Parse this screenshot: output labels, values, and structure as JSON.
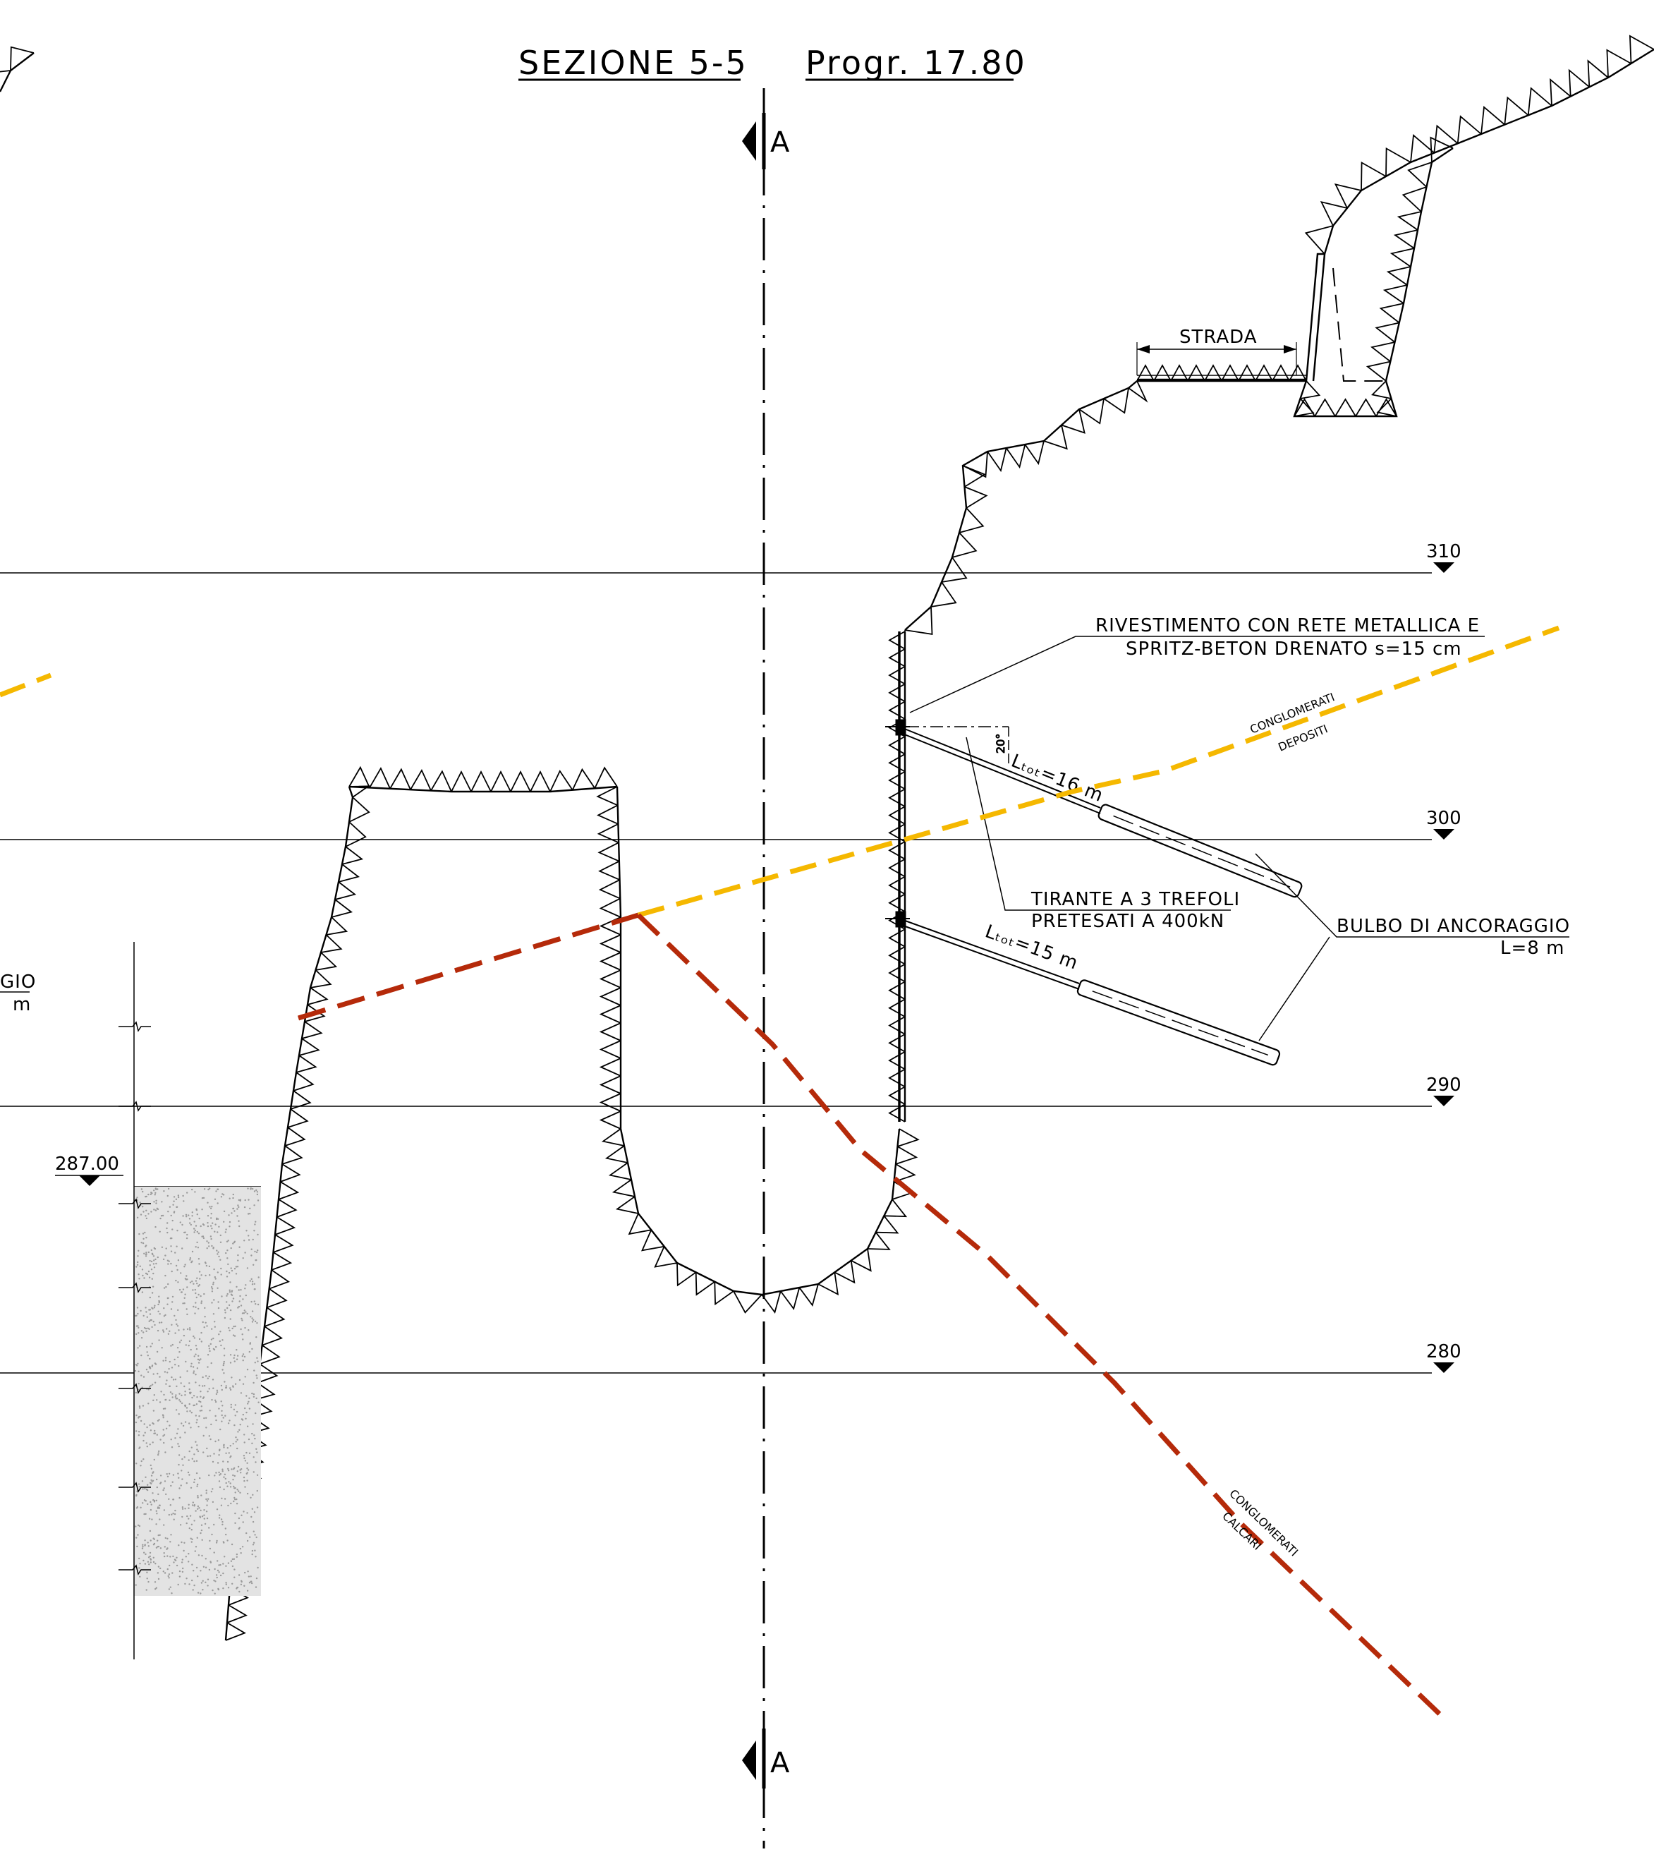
{
  "title": {
    "section": "SEZIONE 5-5",
    "progr": "Progr. 17.80"
  },
  "section_marker": "A",
  "elevations": [
    {
      "name": "310",
      "value": 310
    },
    {
      "name": "300",
      "value": 300
    },
    {
      "name": "290",
      "value": 290
    },
    {
      "name": "280",
      "value": 280
    }
  ],
  "level_marker": "287.00",
  "road": "STRADA",
  "labels": {
    "rivestimento_1": "RIVESTIMENTO CON RETE METALLICA E",
    "rivestimento_2": "SPRITZ-BETON DRENATO s=15 cm",
    "tirante_1": "TIRANTE A 3 TREFOLI",
    "tirante_2": "PRETESATI A 400kN",
    "bulbo_1": "BULBO DI ANCORAGGIO",
    "bulbo_2": "L=8 m",
    "anchor_upper": "Lₜₒₜ=16 m",
    "anchor_lower": "Lₜₒₜ=15 m",
    "angle": "20°",
    "left_cut_1": "GIO",
    "left_cut_2": "m"
  },
  "geology": {
    "upper_1": "CONGLOMERATI",
    "upper_2": "DEPOSITI",
    "lower_1": "CONGLOMERATI",
    "lower_2": "CALCARI"
  },
  "colors": {
    "orange_boundary": "#F5B800",
    "red_boundary": "#B52A0A",
    "line": "#000000"
  }
}
